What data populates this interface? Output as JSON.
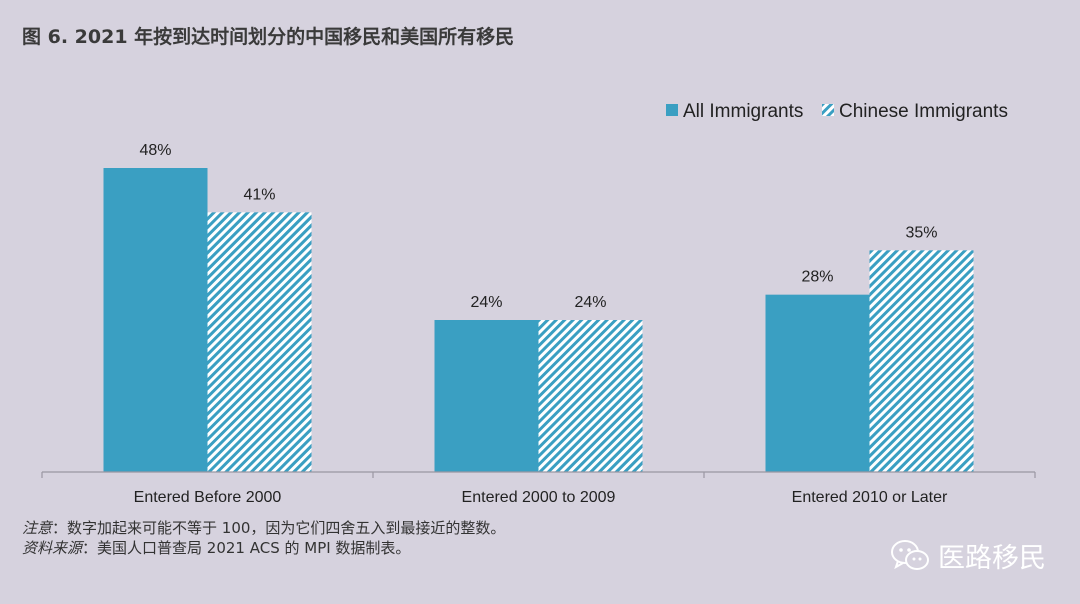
{
  "title": "图 6. 2021 年按到达时间划分的中国移民和美国所有移民",
  "chart_data": {
    "type": "bar",
    "categories": [
      "Entered Before 2000",
      "Entered 2000 to 2009",
      "Entered 2010 or Later"
    ],
    "series": [
      {
        "name": "All Immigrants",
        "values": [
          48,
          24,
          28
        ],
        "labels": [
          "48%",
          "24%",
          "28%"
        ],
        "color": "#3a9fc2"
      },
      {
        "name": "Chinese Immigrants",
        "values": [
          41,
          24,
          35
        ],
        "labels": [
          "41%",
          "24%",
          "35%"
        ],
        "color": "#3a9fc2"
      }
    ],
    "ylim": [
      0,
      55
    ],
    "legend_position": "top-right",
    "xlabel": "",
    "ylabel": ""
  },
  "notes": {
    "note_label": "注意",
    "note_text": "：数字加起来可能不等于 100，因为它们四舍五入到最接近的整数。",
    "source_label": "资料来源",
    "source_text": "：美国人口普查局 2021 ACS 的 MPI 数据制表。"
  },
  "brand": {
    "name": "医路移民",
    "icon": "wechat-icon"
  }
}
